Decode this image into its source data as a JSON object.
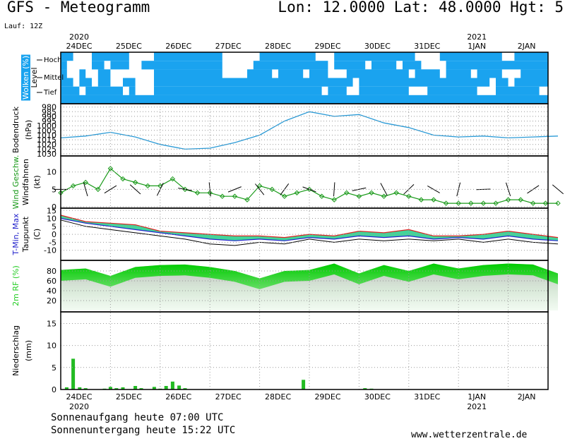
{
  "header": {
    "title": "GFS - Meteogramm",
    "coords": "Lon: 12.0000 Lat: 48.0000 Hgt: 5",
    "run": "Lauf: 12Z"
  },
  "footer": {
    "sunrise": "Sonnenaufgang heute 07:00 UTC",
    "sunset": "Sonnenuntergang heute 15:22 UTC",
    "site": "www.wetterzentrale.de"
  },
  "colors": {
    "cloud": "#1aa3ef",
    "pressure": "#2a9ad6",
    "wind_speed": "#1a9a1a",
    "wind_barb": "#000000",
    "tmin": "#2222cc",
    "tmax": "#dd2222",
    "dewpoint": "#000000",
    "rh": "#22cc22",
    "precip": "#22bb22",
    "grid": "#999999"
  },
  "chart_data": [
    {
      "type": "heatmap",
      "panel": "clouds",
      "ylabel": "Wolken (%)",
      "ylabel2": "Level",
      "levels": [
        "Hoch",
        "Mittel",
        "Tief"
      ],
      "x_ticks": [
        "24DEC",
        "25DEC",
        "26DEC",
        "27DEC",
        "28DEC",
        "29DEC",
        "30DEC",
        "31DEC",
        "1JAN",
        "2JAN"
      ],
      "x_ticks_top_year": [
        {
          "tick": "24DEC",
          "label": "2020"
        },
        {
          "tick": "1JAN",
          "label": "2021"
        }
      ],
      "x_ticks_bottom_year": [
        {
          "tick": "24DEC",
          "label": "2020"
        },
        {
          "tick": "1JAN",
          "label": "2021"
        }
      ],
      "steps_per_day": 8,
      "rows": [
        {
          "level": "Hoch",
          "cover": "110001111110000111111111110000001111111110001111111111111000011111111110011111111111111111"
        },
        {
          "level": "Hoch",
          "cover": "100001101110011111111111110000011111111111101111101111011100001111111111111111111111111101"
        },
        {
          "level": "Mittel",
          "cover": "100100110000000111111111110000111101111011100011111111110111101111011110001111111111111111"
        },
        {
          "level": "Mittel",
          "cover": "110110110011000111111111111111111111111111111110111111111111111111111011011111111111111111"
        },
        {
          "level": "Tief",
          "cover": "111011111101000111111111111111111111111111011100111111110001111111100011111110011111011111"
        },
        {
          "level": "Tief",
          "cover": "111111111111111111111111111111111111111111111111111111111111111111111111111111111111111111"
        }
      ]
    },
    {
      "type": "line",
      "panel": "pressure",
      "ylabel": "Bodendruck",
      "unit": "(hPa)",
      "y_ticks": [
        980,
        985,
        990,
        995,
        1000,
        1005,
        1010,
        1015,
        1020,
        1025,
        1030
      ],
      "ylim": [
        978,
        1030
      ],
      "x_days": [
        0,
        0.5,
        1,
        1.5,
        2,
        2.5,
        3,
        3.5,
        4,
        4.5,
        5,
        5.5,
        6,
        6.5,
        7,
        7.5,
        8,
        8.5,
        9,
        9.5,
        10
      ],
      "values": [
        1013,
        1011,
        1007,
        1012,
        1020,
        1025,
        1024,
        1018,
        1010,
        995,
        985,
        990,
        988,
        997,
        1002,
        1010,
        1012,
        1011,
        1013,
        1012,
        1011
      ]
    },
    {
      "type": "line",
      "panel": "wind",
      "ylabel": "Wind Geschw.",
      "ylabel2": "Windfahnen",
      "unit": "(kt)",
      "y_ticks": [
        0,
        5,
        10
      ],
      "ylim": [
        0,
        14
      ],
      "x_days": [
        0,
        0.25,
        0.5,
        0.75,
        1,
        1.25,
        1.5,
        1.75,
        2,
        2.25,
        2.5,
        2.75,
        3,
        3.25,
        3.5,
        3.75,
        4,
        4.25,
        4.5,
        4.75,
        5,
        5.25,
        5.5,
        5.75,
        6,
        6.25,
        6.5,
        6.75,
        7,
        7.25,
        7.5,
        7.75,
        8,
        8.25,
        8.5,
        8.75,
        9,
        9.25,
        9.5,
        9.75,
        10
      ],
      "values": [
        4,
        6,
        7,
        5,
        11,
        8,
        7,
        6,
        6,
        8,
        5,
        4,
        4,
        3,
        3,
        2,
        6,
        5,
        3,
        4,
        5,
        3,
        2,
        4,
        3,
        4,
        3,
        4,
        3,
        2,
        2,
        1,
        1,
        1,
        1,
        1,
        2,
        2,
        1,
        1,
        1
      ]
    },
    {
      "type": "area",
      "panel": "temperature",
      "ylabel": "T-Min, Max",
      "ylabel2": "Taupunkt",
      "unit": "(C)",
      "y_ticks": [
        -10,
        -5,
        0,
        5,
        10,
        15
      ],
      "ylim": [
        -15,
        16
      ],
      "x_days": [
        0,
        0.5,
        1,
        1.5,
        2,
        2.5,
        3,
        3.5,
        4,
        4.5,
        5,
        5.5,
        6,
        6.5,
        7,
        7.5,
        8,
        8.5,
        9,
        9.5,
        10
      ],
      "series": [
        {
          "name": "Max",
          "values": [
            12,
            8,
            7,
            6,
            2,
            1,
            0,
            -1,
            -1,
            -2,
            0,
            -1,
            2,
            1,
            3,
            -1,
            -1,
            0,
            2,
            0,
            -2
          ]
        },
        {
          "name": "Min",
          "values": [
            10,
            7,
            5,
            3,
            1,
            -1,
            -3,
            -4,
            -3,
            -4,
            -2,
            -3,
            -1,
            -2,
            -1,
            -3,
            -2,
            -3,
            -1,
            -3,
            -4
          ]
        },
        {
          "name": "Taupunkt",
          "values": [
            9,
            5,
            3,
            1,
            -1,
            -3,
            -6,
            -7,
            -5,
            -6,
            -3,
            -5,
            -3,
            -4,
            -3,
            -4,
            -3,
            -5,
            -3,
            -5,
            -6
          ]
        }
      ]
    },
    {
      "type": "area",
      "panel": "humidity",
      "ylabel": "2m RF (%)",
      "y_ticks": [
        20,
        40,
        60,
        80
      ],
      "ylim": [
        0,
        100
      ],
      "x_days": [
        0,
        0.5,
        1,
        1.5,
        2,
        2.5,
        3,
        3.5,
        4,
        4.5,
        5,
        5.5,
        6,
        6.5,
        7,
        7.5,
        8,
        8.5,
        9,
        9.5,
        10
      ],
      "values": [
        82,
        85,
        70,
        88,
        92,
        93,
        88,
        80,
        65,
        80,
        82,
        95,
        75,
        92,
        80,
        95,
        85,
        92,
        95,
        93,
        75
      ]
    },
    {
      "type": "bar",
      "panel": "precipitation",
      "ylabel": "Niederschlag",
      "unit": "(mm)",
      "y_ticks": [
        0,
        5,
        10,
        15
      ],
      "ylim": [
        0,
        17
      ],
      "x_days": [
        0.12,
        0.25,
        0.38,
        0.5,
        0.88,
        1.0,
        1.12,
        1.25,
        1.5,
        1.62,
        1.88,
        2.0,
        2.12,
        2.25,
        2.38,
        2.5,
        4.88,
        6.12,
        6.25
      ],
      "values": [
        0.5,
        7.0,
        0.5,
        0.3,
        0.2,
        0.6,
        0.3,
        0.5,
        0.8,
        0.3,
        0.6,
        0.2,
        0.8,
        1.8,
        0.9,
        0.3,
        2.2,
        0.3,
        0.2
      ]
    }
  ]
}
